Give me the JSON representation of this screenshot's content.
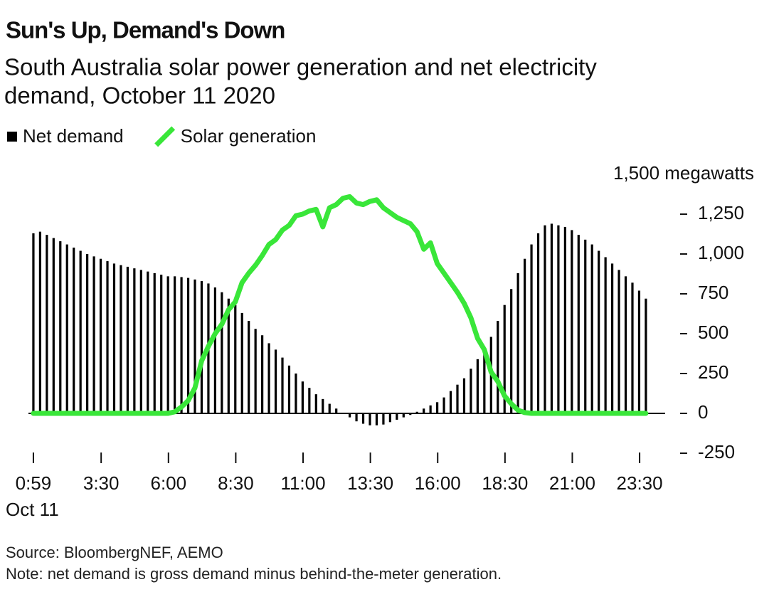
{
  "chart_data": {
    "type": "bar_line",
    "title": "Sun's Up, Demand's Down",
    "subtitle": [
      "South Australia solar power generation and net electricity",
      "demand, October 11 2020"
    ],
    "x": [
      59,
      74,
      89,
      104,
      119,
      134,
      149,
      164,
      179,
      194,
      209,
      224,
      239,
      254,
      269,
      284,
      299,
      314,
      329,
      344,
      359,
      374,
      389,
      404,
      419,
      434,
      449,
      464,
      479,
      494,
      509,
      524,
      539,
      554,
      569,
      584,
      599,
      614,
      629,
      644,
      659,
      674,
      689,
      704,
      719,
      734,
      749,
      764,
      779,
      794,
      809,
      824,
      839,
      854,
      869,
      884,
      899,
      914,
      929,
      944,
      959,
      974,
      989,
      1004,
      1019,
      1034,
      1049,
      1064,
      1079,
      1094,
      1109,
      1124,
      1139,
      1154,
      1169,
      1184,
      1199,
      1214,
      1229,
      1244,
      1259,
      1274,
      1289,
      1304,
      1319,
      1334,
      1349,
      1364,
      1379,
      1394,
      1409,
      1424
    ],
    "series": [
      {
        "name": "Net demand",
        "color": "#000000",
        "mark": "bar",
        "values": [
          1130,
          1140,
          1120,
          1100,
          1080,
          1060,
          1040,
          1020,
          1000,
          985,
          970,
          955,
          940,
          930,
          920,
          910,
          900,
          890,
          880,
          870,
          860,
          860,
          855,
          850,
          840,
          830,
          815,
          790,
          760,
          720,
          680,
          630,
          580,
          530,
          490,
          440,
          400,
          350,
          300,
          250,
          200,
          160,
          120,
          90,
          60,
          30,
          0,
          -25,
          -50,
          -65,
          -75,
          -75,
          -70,
          -55,
          -40,
          -25,
          -10,
          10,
          30,
          50,
          70,
          100,
          140,
          180,
          220,
          280,
          340,
          410,
          480,
          580,
          680,
          780,
          880,
          970,
          1060,
          1130,
          1180,
          1190,
          1180,
          1170,
          1150,
          1120,
          1090,
          1060,
          1020,
          980,
          940,
          900,
          860,
          820,
          770,
          720
        ]
      },
      {
        "name": "Solar generation",
        "color": "#39e639",
        "mark": "line",
        "values": [
          0,
          0,
          0,
          0,
          0,
          0,
          0,
          0,
          0,
          0,
          0,
          0,
          0,
          0,
          0,
          0,
          0,
          0,
          0,
          0,
          0,
          10,
          40,
          80,
          160,
          330,
          420,
          500,
          560,
          650,
          700,
          820,
          880,
          930,
          990,
          1060,
          1090,
          1150,
          1180,
          1240,
          1250,
          1270,
          1280,
          1170,
          1290,
          1310,
          1350,
          1360,
          1320,
          1310,
          1330,
          1340,
          1290,
          1260,
          1230,
          1210,
          1190,
          1140,
          1030,
          1070,
          940,
          880,
          820,
          760,
          690,
          600,
          470,
          400,
          260,
          200,
          110,
          60,
          20,
          5,
          0,
          0,
          0,
          0,
          0,
          0,
          0,
          0,
          0,
          0,
          0,
          0,
          0,
          0,
          0,
          0,
          0,
          0
        ]
      }
    ],
    "xlim": [
      48,
      1440
    ],
    "xticks": [
      {
        "value": 59,
        "label": "0:59"
      },
      {
        "value": 210,
        "label": "3:30"
      },
      {
        "value": 360,
        "label": "6:00"
      },
      {
        "value": 510,
        "label": "8:30"
      },
      {
        "value": 660,
        "label": "11:00"
      },
      {
        "value": 810,
        "label": "13:30"
      },
      {
        "value": 960,
        "label": "16:00"
      },
      {
        "value": 1110,
        "label": "18:30"
      },
      {
        "value": 1260,
        "label": "21:00"
      },
      {
        "value": 1410,
        "label": "23:30"
      }
    ],
    "xtick_sublabel": "Oct 11",
    "ylim": [
      -250,
      1500
    ],
    "yticks": [
      {
        "value": -250,
        "label": "-250"
      },
      0,
      250,
      500,
      750,
      {
        "value": 1000,
        "label": "1,000"
      },
      {
        "value": 1250,
        "label": "1,250"
      },
      {
        "value": 1500,
        "label": "1,500 megawatts"
      }
    ],
    "source": "Source: BloombergNEF, AEMO",
    "note": "Note: net demand is gross demand minus behind-the-meter generation."
  }
}
